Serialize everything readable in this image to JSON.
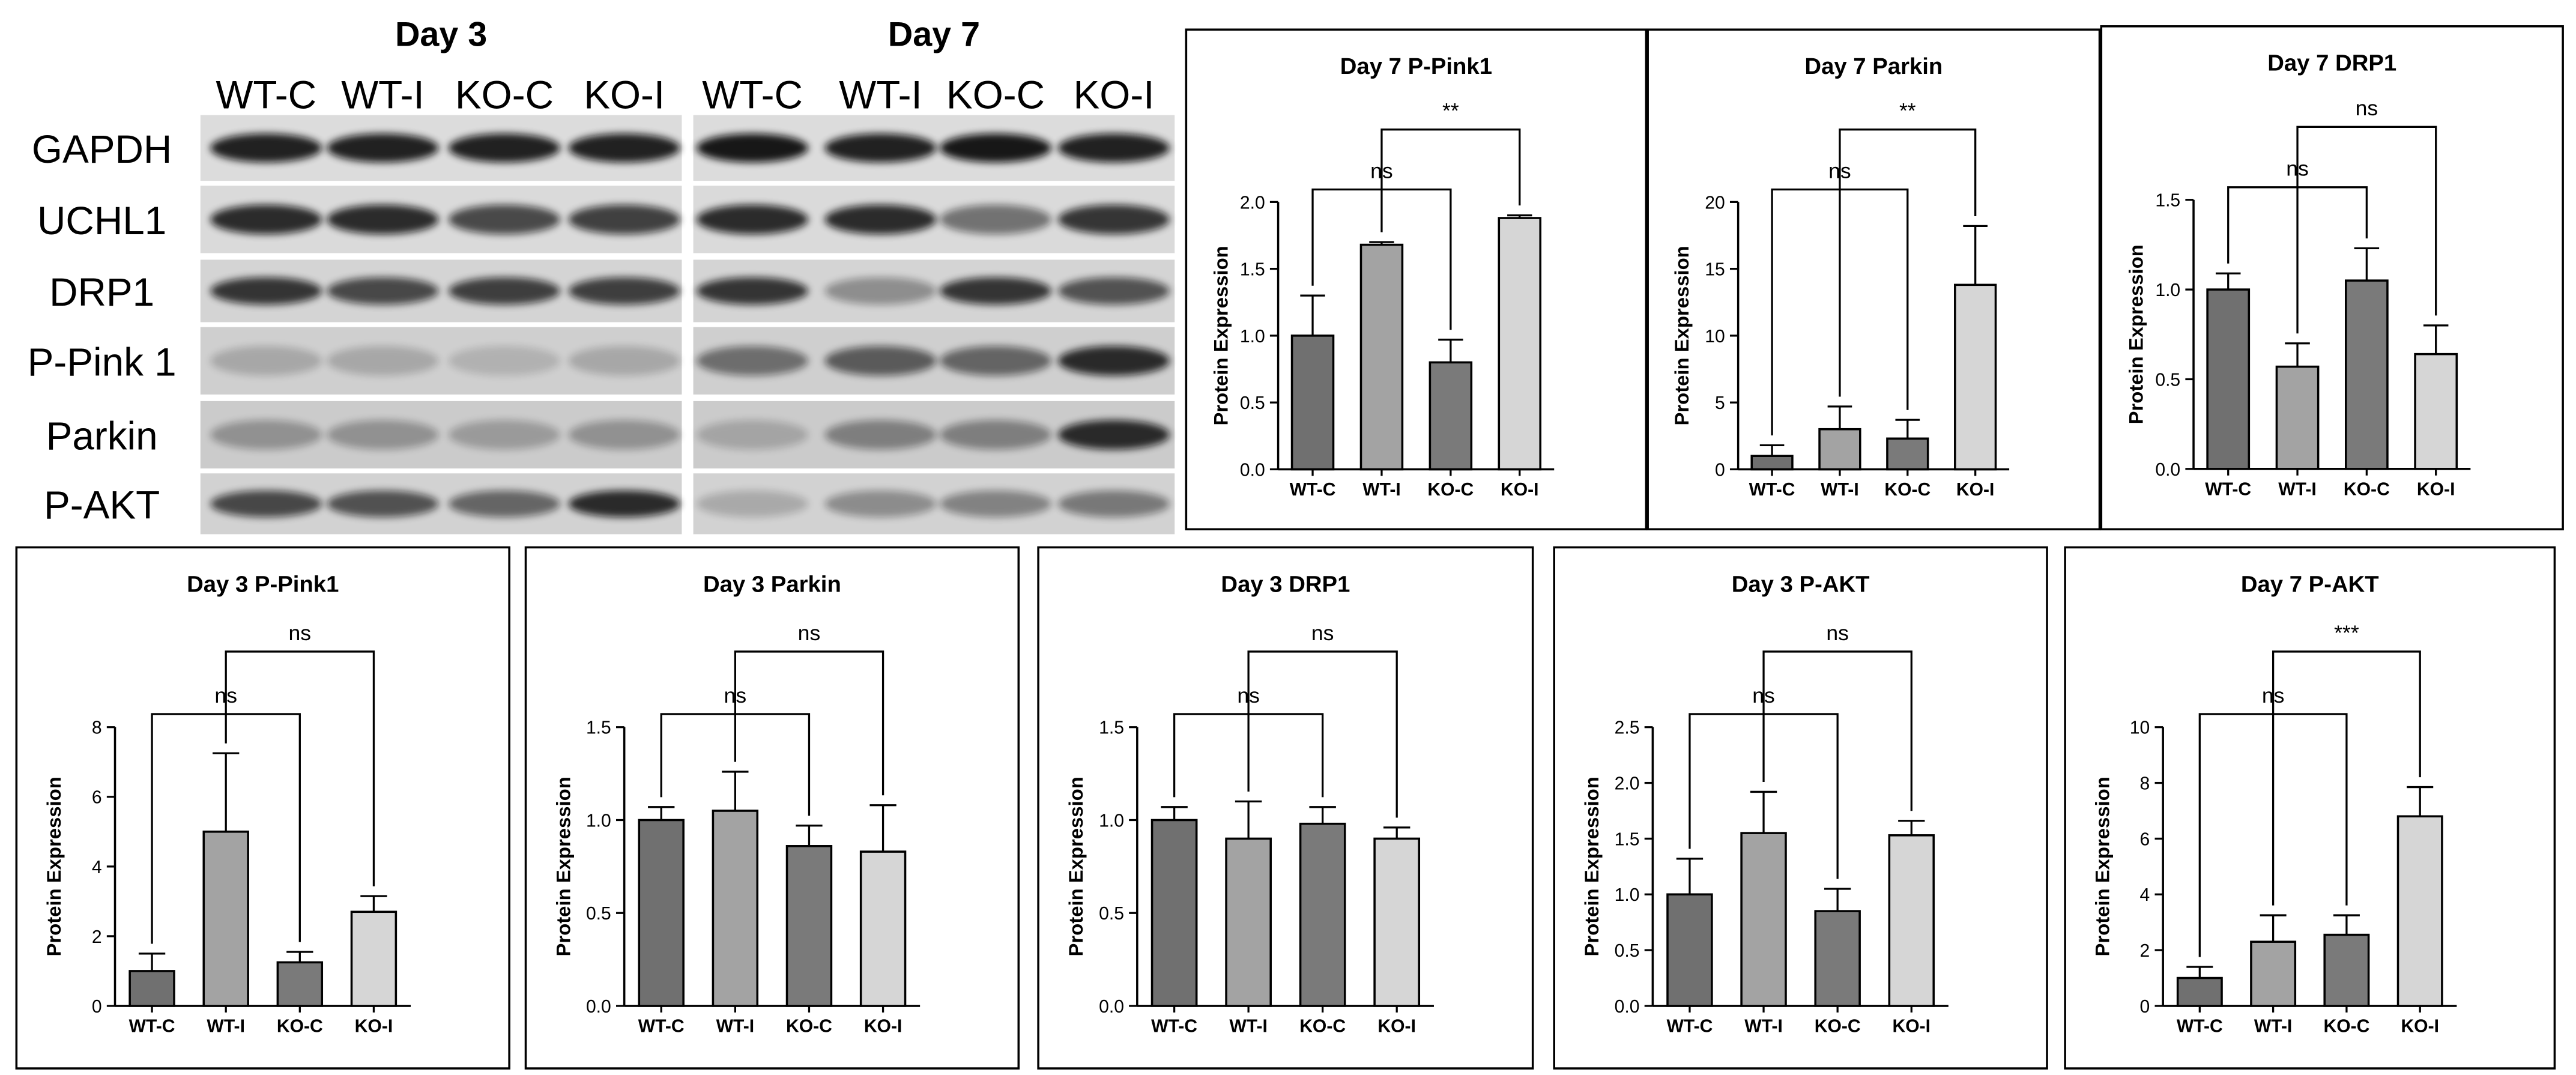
{
  "blot": {
    "panels": [
      {
        "title": "Day 3",
        "lanes": [
          "WT-C",
          "WT-I",
          "KO-C",
          "KO-I"
        ]
      },
      {
        "title": "Day 7",
        "lanes": [
          "WT-C",
          "WT-I",
          "KO-C",
          "KO-I"
        ]
      }
    ],
    "proteins": [
      "GAPDH",
      "UCHL1",
      "DRP1",
      "P-Pink 1",
      "Parkin",
      "P-AKT"
    ]
  },
  "chart_data": [
    {
      "type": "bar",
      "title": "Day 7 P-Pink1",
      "y_label": "Protein Expression",
      "categories": [
        "WT-C",
        "WT-I",
        "KO-C",
        "KO-I"
      ],
      "values": [
        1.0,
        1.68,
        0.8,
        1.88
      ],
      "errors": [
        0.3,
        0.02,
        0.17,
        0.02
      ],
      "colors": [
        "#707070",
        "#a3a3a3",
        "#7a7a7a",
        "#d6d6d6"
      ],
      "ylim": [
        0,
        2.0
      ],
      "yticks": [
        {
          "value": 0,
          "label": "0.0"
        },
        {
          "value": 0.5,
          "label": "0.5"
        },
        {
          "value": 1,
          "label": "1.0"
        },
        {
          "value": 1.5,
          "label": "1.5"
        },
        {
          "value": 2,
          "label": "2.0"
        }
      ],
      "brackets": [
        {
          "from": "WT-C",
          "to": "KO-C",
          "label": "ns"
        },
        {
          "from": "WT-I",
          "to": "KO-I",
          "label": "**"
        }
      ]
    },
    {
      "type": "bar",
      "title": "Day 7 Parkin",
      "y_label": "Protein Expression",
      "categories": [
        "WT-C",
        "WT-I",
        "KO-C",
        "KO-I"
      ],
      "values": [
        1,
        3,
        2.3,
        13.8
      ],
      "errors": [
        0.8,
        1.7,
        1.4,
        4.4
      ],
      "colors": [
        "#707070",
        "#a3a3a3",
        "#7a7a7a",
        "#d6d6d6"
      ],
      "ylim": [
        0,
        20
      ],
      "yticks": [
        0,
        5,
        10,
        15,
        20
      ],
      "brackets": [
        {
          "from": "WT-C",
          "to": "KO-C",
          "label": "ns"
        },
        {
          "from": "WT-I",
          "to": "KO-I",
          "label": "**"
        }
      ]
    },
    {
      "type": "bar",
      "title": "Day 7 DRP1",
      "y_label": "Protein Expression",
      "categories": [
        "WT-C",
        "WT-I",
        "KO-C",
        "KO-I"
      ],
      "values": [
        1.0,
        0.57,
        1.05,
        0.64
      ],
      "errors": [
        0.09,
        0.13,
        0.18,
        0.16
      ],
      "colors": [
        "#707070",
        "#a3a3a3",
        "#7a7a7a",
        "#d6d6d6"
      ],
      "ylim": [
        0,
        1.5
      ],
      "yticks": [
        {
          "value": 0,
          "label": "0.0"
        },
        {
          "value": 0.5,
          "label": "0.5"
        },
        {
          "value": 1,
          "label": "1.0"
        },
        {
          "value": 1.5,
          "label": "1.5"
        }
      ],
      "brackets": [
        {
          "from": "WT-C",
          "to": "KO-C",
          "label": "ns"
        },
        {
          "from": "WT-I",
          "to": "KO-I",
          "label": "ns"
        }
      ]
    },
    {
      "type": "bar",
      "title": "Day 3 P-Pink1",
      "y_label": "Protein Expression",
      "categories": [
        "WT-C",
        "WT-I",
        "KO-C",
        "KO-I"
      ],
      "values": [
        1,
        5,
        1.25,
        2.7
      ],
      "errors": [
        0.5,
        2.25,
        0.3,
        0.45
      ],
      "colors": [
        "#707070",
        "#a3a3a3",
        "#7a7a7a",
        "#d6d6d6"
      ],
      "ylim": [
        0,
        8
      ],
      "yticks": [
        0,
        2,
        4,
        6,
        8
      ],
      "brackets": [
        {
          "from": "WT-C",
          "to": "KO-C",
          "label": "ns"
        },
        {
          "from": "WT-I",
          "to": "KO-I",
          "label": "ns"
        }
      ]
    },
    {
      "type": "bar",
      "title": "Day 3 Parkin",
      "y_label": "Protein Expression",
      "categories": [
        "WT-C",
        "WT-I",
        "KO-C",
        "KO-I"
      ],
      "values": [
        1.0,
        1.05,
        0.86,
        0.83
      ],
      "errors": [
        0.07,
        0.21,
        0.11,
        0.25
      ],
      "colors": [
        "#707070",
        "#a3a3a3",
        "#7a7a7a",
        "#d6d6d6"
      ],
      "ylim": [
        0,
        1.5
      ],
      "yticks": [
        {
          "value": 0,
          "label": "0.0"
        },
        {
          "value": 0.5,
          "label": "0.5"
        },
        {
          "value": 1,
          "label": "1.0"
        },
        {
          "value": 1.5,
          "label": "1.5"
        }
      ],
      "brackets": [
        {
          "from": "WT-C",
          "to": "KO-C",
          "label": "ns"
        },
        {
          "from": "WT-I",
          "to": "KO-I",
          "label": "ns"
        }
      ]
    },
    {
      "type": "bar",
      "title": "Day 3 DRP1",
      "y_label": "Protein Expression",
      "categories": [
        "WT-C",
        "WT-I",
        "KO-C",
        "KO-I"
      ],
      "values": [
        1.0,
        0.9,
        0.98,
        0.9
      ],
      "errors": [
        0.07,
        0.2,
        0.09,
        0.06
      ],
      "colors": [
        "#707070",
        "#a3a3a3",
        "#7a7a7a",
        "#d6d6d6"
      ],
      "ylim": [
        0,
        1.5
      ],
      "yticks": [
        {
          "value": 0,
          "label": "0.0"
        },
        {
          "value": 0.5,
          "label": "0.5"
        },
        {
          "value": 1,
          "label": "1.0"
        },
        {
          "value": 1.5,
          "label": "1.5"
        }
      ],
      "brackets": [
        {
          "from": "WT-C",
          "to": "KO-C",
          "label": "ns"
        },
        {
          "from": "WT-I",
          "to": "KO-I",
          "label": "ns"
        }
      ]
    },
    {
      "type": "bar",
      "title": "Day 3 P-AKT",
      "y_label": "Protein Expression",
      "categories": [
        "WT-C",
        "WT-I",
        "KO-C",
        "KO-I"
      ],
      "values": [
        1.0,
        1.55,
        0.85,
        1.53
      ],
      "errors": [
        0.32,
        0.37,
        0.2,
        0.13
      ],
      "colors": [
        "#707070",
        "#a3a3a3",
        "#7a7a7a",
        "#d6d6d6"
      ],
      "ylim": [
        0,
        2.5
      ],
      "yticks": [
        {
          "value": 0,
          "label": "0.0"
        },
        {
          "value": 0.5,
          "label": "0.5"
        },
        {
          "value": 1,
          "label": "1.0"
        },
        {
          "value": 1.5,
          "label": "1.5"
        },
        {
          "value": 2,
          "label": "2.0"
        },
        {
          "value": 2.5,
          "label": "2.5"
        }
      ],
      "brackets": [
        {
          "from": "WT-C",
          "to": "KO-C",
          "label": "ns"
        },
        {
          "from": "WT-I",
          "to": "KO-I",
          "label": "ns"
        }
      ]
    },
    {
      "type": "bar",
      "title": "Day 7 P-AKT",
      "y_label": "Protein Expression",
      "categories": [
        "WT-C",
        "WT-I",
        "KO-C",
        "KO-I"
      ],
      "values": [
        1,
        2.3,
        2.55,
        6.8
      ],
      "errors": [
        0.4,
        0.95,
        0.7,
        1.05
      ],
      "colors": [
        "#707070",
        "#a3a3a3",
        "#7a7a7a",
        "#d6d6d6"
      ],
      "ylim": [
        0,
        10
      ],
      "yticks": [
        0,
        2,
        4,
        6,
        8,
        10
      ],
      "brackets": [
        {
          "from": "WT-C",
          "to": "KO-C",
          "label": "ns"
        },
        {
          "from": "WT-I",
          "to": "KO-I",
          "label": "***"
        }
      ]
    }
  ]
}
